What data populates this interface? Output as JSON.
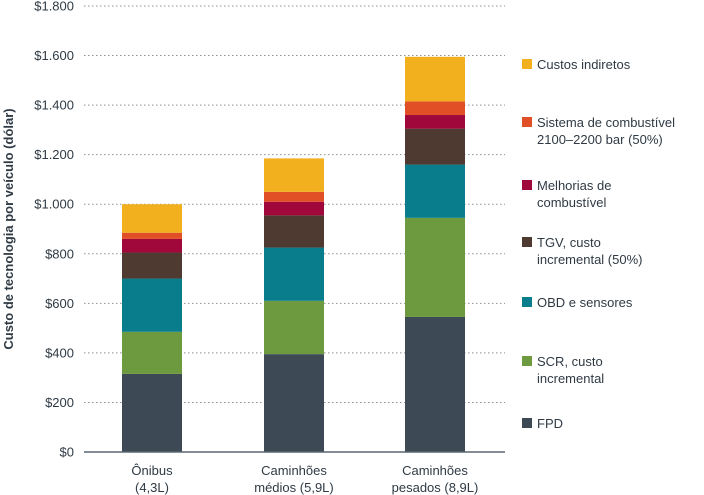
{
  "chart_data": {
    "type": "bar",
    "stacked": true,
    "ylabel": "Custo de tecnologia por veículo (dólar)",
    "ylim": [
      0,
      1800
    ],
    "yticks": [
      0,
      200,
      400,
      600,
      800,
      1000,
      1200,
      1400,
      1600,
      1800
    ],
    "ytick_labels": [
      "$0",
      "$200",
      "$400",
      "$600",
      "$800",
      "$1.000",
      "$1.200",
      "$1.400",
      "$1.600",
      "$1.800"
    ],
    "grid": "horizontal dotted",
    "legend_position": "right",
    "categories": [
      [
        "Ônibus",
        "(4,3L)"
      ],
      [
        "Caminhões",
        "médios (5,9L)"
      ],
      [
        "Caminhões",
        "pesados (8,9L)"
      ]
    ],
    "series": [
      {
        "name": "FPD",
        "color": "#3d4a55",
        "values": [
          315,
          395,
          545
        ]
      },
      {
        "name": "SCR, custo incremental",
        "color": "#6e9a3f",
        "values": [
          170,
          215,
          400
        ]
      },
      {
        "name": "OBD e sensores",
        "color": "#0a7d8d",
        "values": [
          215,
          215,
          215
        ]
      },
      {
        "name": "TGV, custo incremental (50%)",
        "color": "#4f3a32",
        "values": [
          105,
          130,
          145
        ]
      },
      {
        "name": "Melhorias de combustível",
        "color": "#a0073a",
        "values": [
          55,
          55,
          55
        ]
      },
      {
        "name": "Sistema de combustível 2100–2200 bar (50%)",
        "color": "#e04f26",
        "values": [
          25,
          40,
          55
        ]
      },
      {
        "name": "Custos indiretos",
        "color": "#f2b01e",
        "values": [
          115,
          135,
          180
        ]
      }
    ]
  },
  "legend": [
    {
      "lines": [
        "Custos indiretos"
      ],
      "color": "#f2b01e"
    },
    {
      "lines": [
        "Sistema de combustível",
        "2100–2200 bar (50%)"
      ],
      "color": "#e04f26"
    },
    {
      "lines": [
        "Melhorias de",
        "combustível"
      ],
      "color": "#a0073a"
    },
    {
      "lines": [
        "TGV, custo",
        "incremental (50%)"
      ],
      "color": "#4f3a32"
    },
    {
      "lines": [
        "OBD e sensores"
      ],
      "color": "#0a7d8d"
    },
    {
      "lines": [
        "SCR, custo",
        "incremental"
      ],
      "color": "#6e9a3f"
    },
    {
      "lines": [
        "FPD"
      ],
      "color": "#3d4a55"
    }
  ]
}
